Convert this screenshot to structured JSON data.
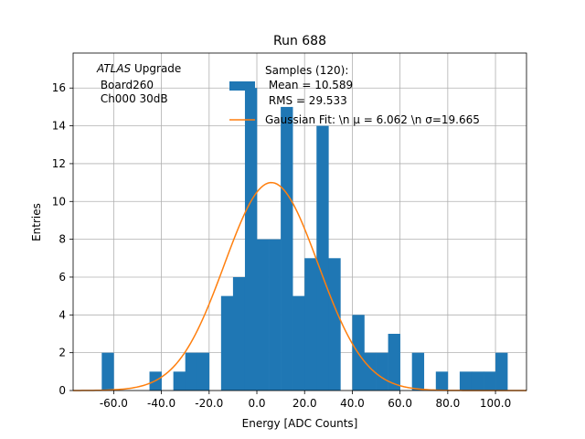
{
  "chart_data": {
    "type": "bar",
    "title": "Run 688",
    "xlabel": "Energy [ADC Counts]",
    "ylabel": "Entries",
    "xlim": [
      -77.0,
      113.0
    ],
    "ylim": [
      0,
      17.85
    ],
    "grid": true,
    "xticks": [
      -60,
      -40,
      -20,
      0,
      20,
      40,
      60,
      80,
      100
    ],
    "xtick_labels": [
      "-60.0",
      "-40.0",
      "-20.0",
      "0.0",
      "20.0",
      "40.0",
      "60.0",
      "80.0",
      "100.0"
    ],
    "yticks": [
      0,
      2,
      4,
      6,
      8,
      10,
      12,
      14,
      16
    ],
    "ytick_labels": [
      "0",
      "2",
      "4",
      "6",
      "8",
      "10",
      "12",
      "14",
      "16"
    ],
    "bin_width": 5,
    "bins": [
      {
        "left": -65,
        "value": 2
      },
      {
        "left": -60,
        "value": 0
      },
      {
        "left": -55,
        "value": 0
      },
      {
        "left": -50,
        "value": 0
      },
      {
        "left": -45,
        "value": 1
      },
      {
        "left": -40,
        "value": 0
      },
      {
        "left": -35,
        "value": 1
      },
      {
        "left": -30,
        "value": 2
      },
      {
        "left": -25,
        "value": 2
      },
      {
        "left": -20,
        "value": 0
      },
      {
        "left": -15,
        "value": 5
      },
      {
        "left": -10,
        "value": 6
      },
      {
        "left": -5,
        "value": 16
      },
      {
        "left": 0,
        "value": 8
      },
      {
        "left": 5,
        "value": 8
      },
      {
        "left": 10,
        "value": 15
      },
      {
        "left": 15,
        "value": 5
      },
      {
        "left": 20,
        "value": 7
      },
      {
        "left": 25,
        "value": 14
      },
      {
        "left": 30,
        "value": 7
      },
      {
        "left": 35,
        "value": 0
      },
      {
        "left": 40,
        "value": 4
      },
      {
        "left": 45,
        "value": 2
      },
      {
        "left": 50,
        "value": 2
      },
      {
        "left": 55,
        "value": 3
      },
      {
        "left": 60,
        "value": 0
      },
      {
        "left": 65,
        "value": 2
      },
      {
        "left": 70,
        "value": 0
      },
      {
        "left": 75,
        "value": 1
      },
      {
        "left": 80,
        "value": 0
      },
      {
        "left": 85,
        "value": 1
      },
      {
        "left": 90,
        "value": 1
      },
      {
        "left": 95,
        "value": 1
      },
      {
        "left": 100,
        "value": 2
      }
    ],
    "fit": {
      "name": "Gaussian Fit",
      "amplitude": 11.0,
      "mu": 6.062,
      "sigma": 19.665,
      "x_range": [
        -77,
        113
      ]
    },
    "series_colors": {
      "histogram": "#1f77b4",
      "fit": "#ff7f0e"
    },
    "annotation": {
      "lines": [
        {
          "italic": "ATLAS",
          "text": " Upgrade"
        },
        {
          "italic": "",
          "text": " Board260"
        },
        {
          "italic": "",
          "text": " Ch000 30dB"
        }
      ]
    },
    "legend": {
      "position": "top-right",
      "histogram_lines": [
        "Samples (120):",
        " Mean = 10.589",
        " RMS = 29.533"
      ],
      "fit_label": "Gaussian Fit: \\n μ = 6.062 \\n σ=19.665"
    }
  }
}
